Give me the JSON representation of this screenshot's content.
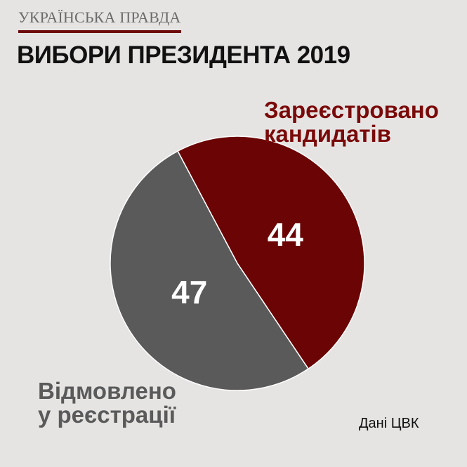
{
  "brand": {
    "name": "УКРАЇНСЬКА ПРАВДА"
  },
  "title": "ВИБОРИ ПРЕЗИДЕНТА 2019",
  "source": "Дані ЦВК",
  "chart_data": {
    "type": "pie",
    "title": "ВИБОРИ ПРЕЗИДЕНТА 2019",
    "start_angle_deg": -28,
    "slices": [
      {
        "name": "Зареєстровано кандидатів",
        "lines": [
          "Зареєстровано",
          "кандидатів"
        ],
        "value": 44,
        "color": "#6b0505"
      },
      {
        "name": "Відмовлено у реєстрації",
        "lines": [
          "Відмовлено",
          "у реєстрації"
        ],
        "value": 47,
        "color": "#5a5a5a"
      }
    ]
  }
}
